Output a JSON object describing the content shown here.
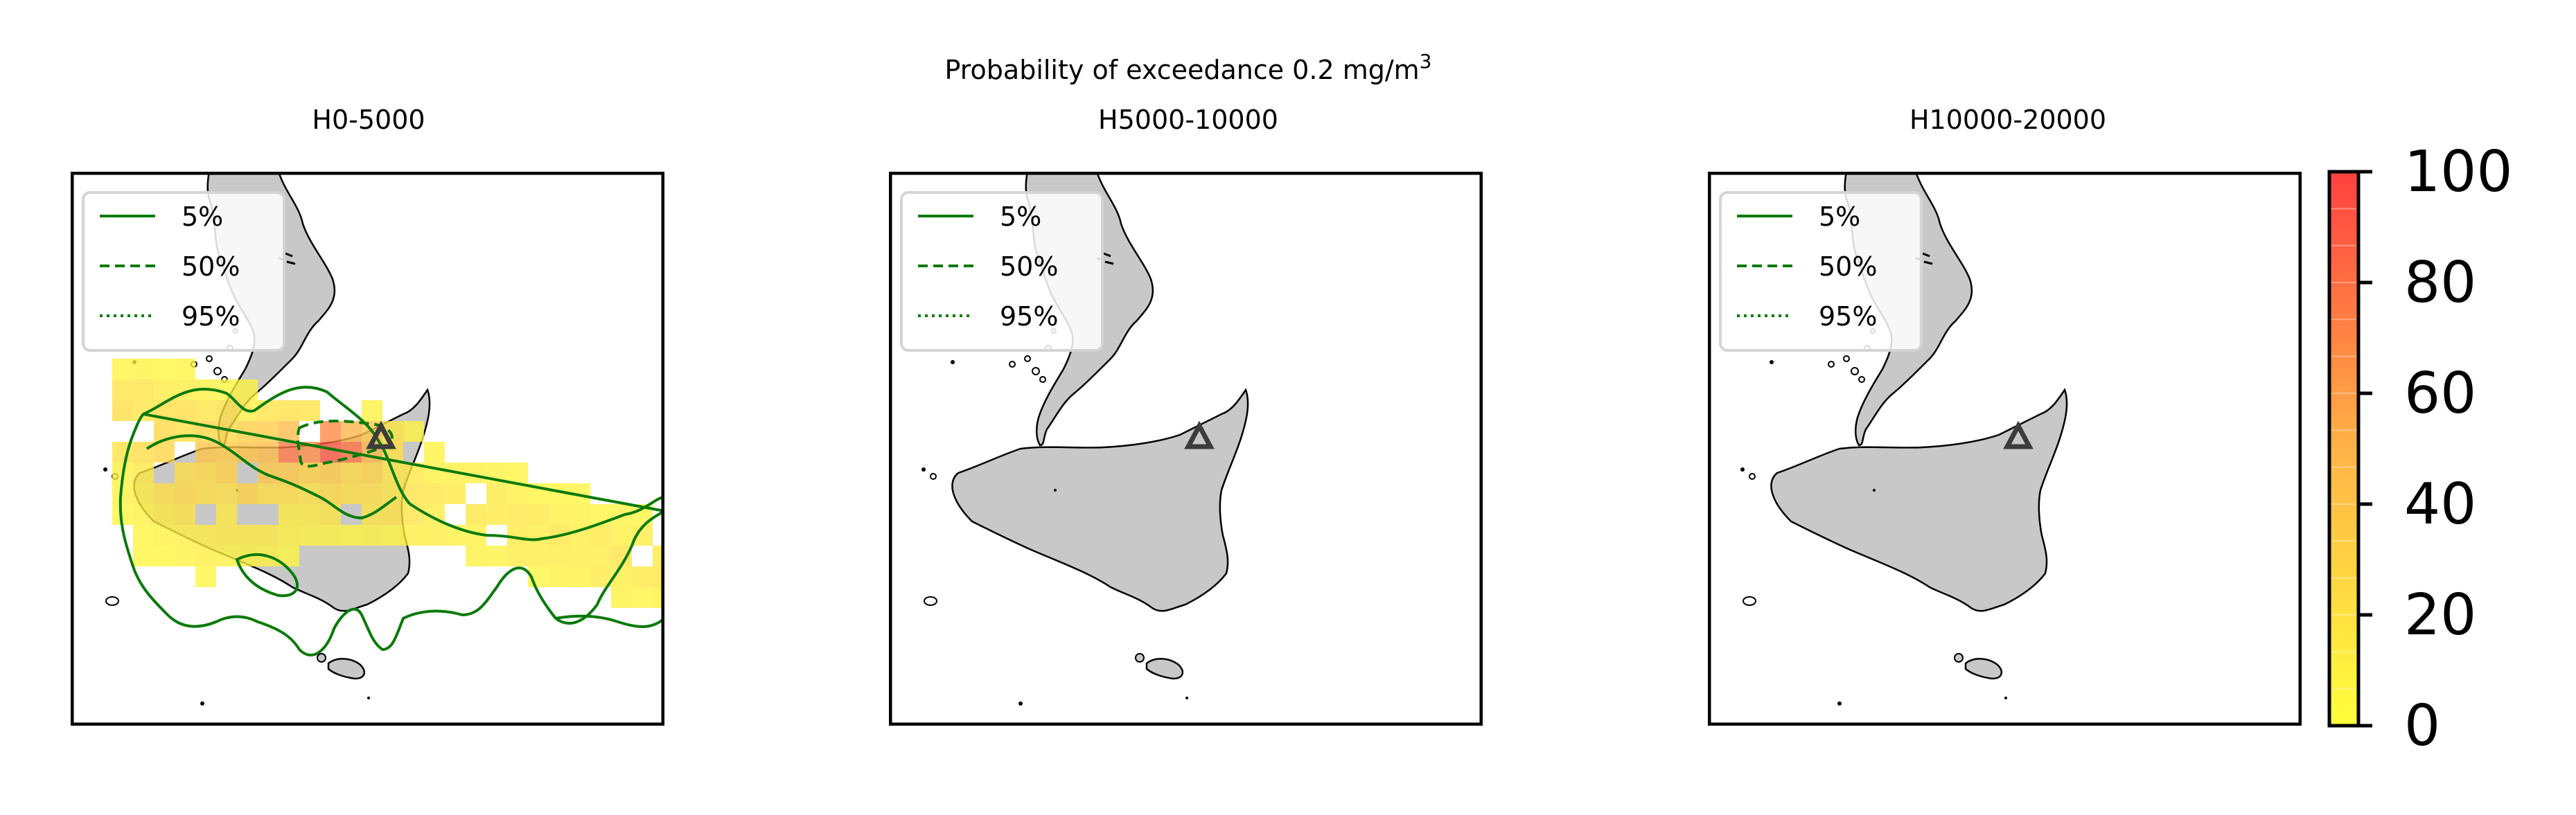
{
  "figure": {
    "suptitle_line1": "Probability of exceedance 0.2 mg/m",
    "suptitle_sup": "3"
  },
  "panels": [
    {
      "title": "H0-5000",
      "has_plume": true
    },
    {
      "title": "H5000-10000",
      "has_plume": false
    },
    {
      "title": "H10000-20000",
      "has_plume": false
    }
  ],
  "legend": {
    "items": [
      {
        "label": "5%",
        "style": "solid"
      },
      {
        "label": "50%",
        "style": "dashed"
      },
      {
        "label": "95%",
        "style": "dotted"
      }
    ]
  },
  "colorbar": {
    "min": 0,
    "max": 100,
    "ticks": [
      "0",
      "20",
      "40",
      "60",
      "80",
      "100"
    ],
    "colors": [
      "#ffff3c",
      "#ffb347",
      "#ff4040"
    ]
  },
  "colors": {
    "land": "#c8c8c8",
    "contour": "#0a7a0a",
    "vent_marker": "#3c3c3c"
  }
}
